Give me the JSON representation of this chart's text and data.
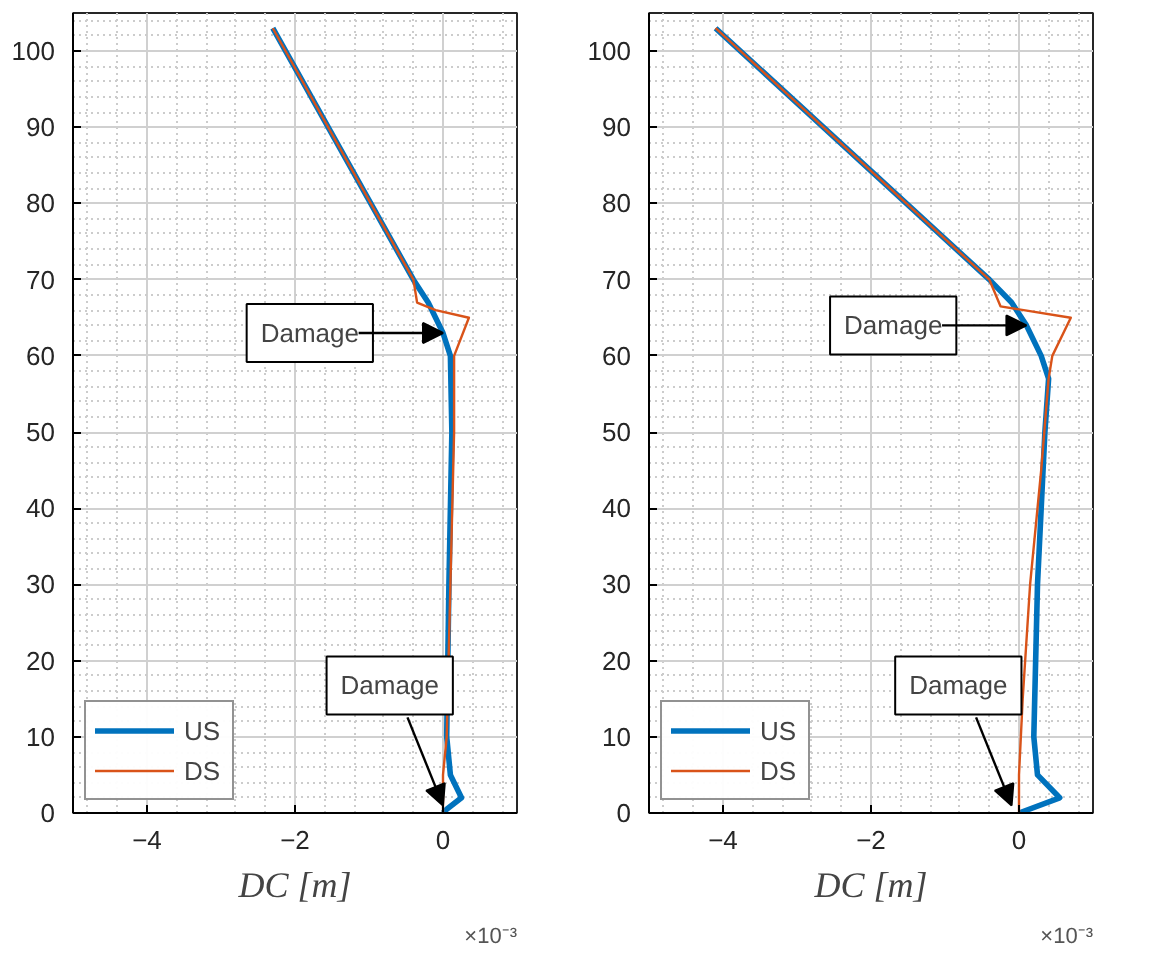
{
  "chart_data": [
    {
      "type": "line",
      "xlabel": "DC [m]",
      "xlim": [
        -5,
        1
      ],
      "ylim": [
        0,
        105
      ],
      "xticks": [
        -4,
        -2,
        0
      ],
      "yticks": [
        0,
        10,
        20,
        30,
        40,
        50,
        60,
        70,
        80,
        90,
        100
      ],
      "grid": true,
      "legend": "bottom left",
      "line_style": "solid",
      "marker": "none",
      "series": [
        {
          "name": "US",
          "color": "#0072bd",
          "x": [
            -2.3,
            -0.4,
            -0.2,
            0,
            0.1,
            0.12,
            0.08,
            0.05,
            0.1,
            0.25,
            0.05,
            0
          ],
          "values": [
            103,
            70,
            67,
            63,
            60,
            50,
            30,
            10,
            5,
            2,
            0.5,
            0
          ]
        },
        {
          "name": "DS",
          "color": "#d95319",
          "x": [
            -2.3,
            -0.4,
            -0.35,
            -0.1,
            0.35,
            0.15,
            0.15,
            0.1,
            0.05,
            0,
            0
          ],
          "values": [
            103,
            70,
            67,
            66,
            65,
            60,
            50,
            30,
            10,
            5,
            0
          ]
        }
      ],
      "annotations": [
        {
          "text": "Damage",
          "x": 0,
          "y": 63
        },
        {
          "text": "Damage",
          "x": 0,
          "y": 1
        },
        "×10⁻³"
      ]
    },
    {
      "type": "line",
      "xlabel": "DC [m]",
      "xlim": [
        -5,
        1
      ],
      "ylim": [
        0,
        105
      ],
      "xticks": [
        -4,
        -2,
        0
      ],
      "yticks": [
        0,
        10,
        20,
        30,
        40,
        50,
        60,
        70,
        80,
        90,
        100
      ],
      "grid": true,
      "legend": "bottom left",
      "line_style": "solid",
      "marker": "none",
      "series": [
        {
          "name": "US",
          "color": "#0072bd",
          "x": [
            -4.1,
            -0.4,
            -0.1,
            0.1,
            0.3,
            0.4,
            0.35,
            0.25,
            0.2,
            0.25,
            0.55,
            0
          ],
          "values": [
            103,
            70,
            67,
            64,
            60,
            57,
            50,
            30,
            10,
            5,
            2,
            0
          ]
        },
        {
          "name": "DS",
          "color": "#d95319",
          "x": [
            -4.1,
            -0.4,
            -0.25,
            0.7,
            0.45,
            0.4,
            0.3,
            0.15,
            0.05,
            0,
            0
          ],
          "values": [
            103,
            70,
            66.5,
            65,
            60,
            57,
            45,
            30,
            15,
            5,
            0
          ]
        }
      ],
      "annotations": [
        {
          "text": "Damage",
          "x": 0.1,
          "y": 64
        },
        {
          "text": "Damage",
          "x": -0.1,
          "y": 1
        },
        "×10⁻³"
      ]
    }
  ]
}
